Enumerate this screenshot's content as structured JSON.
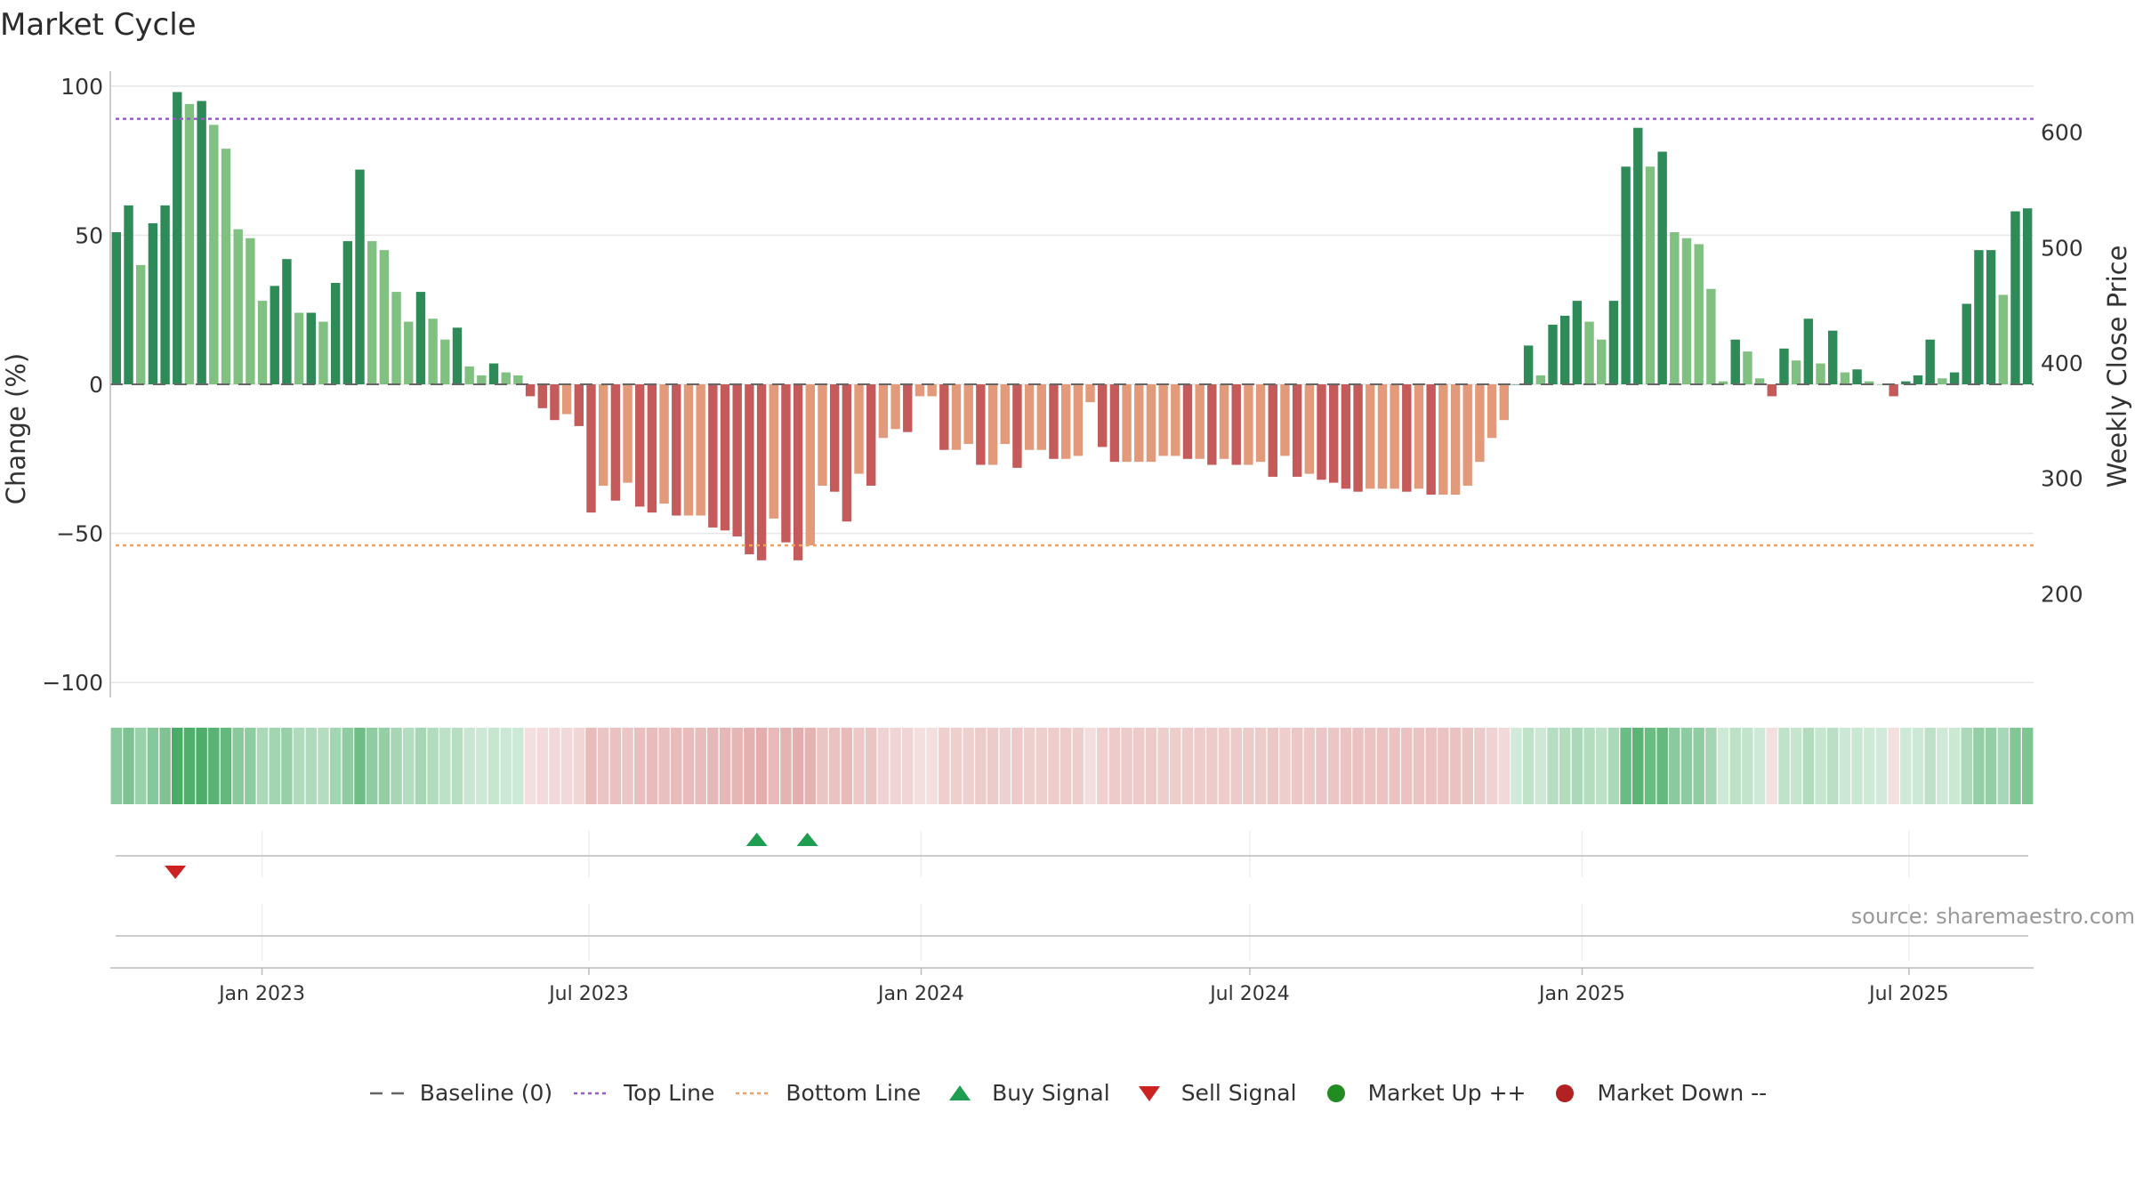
{
  "title": "Market Cycle",
  "source": "source: sharemaestro.com",
  "chart_data": {
    "type": "bar",
    "ylabel_left": "Change (%)",
    "ylabel_right": "Weekly Close Price",
    "ylim_left": [
      -105,
      105
    ],
    "yticks_left": [
      100,
      50,
      0,
      -50,
      -100
    ],
    "yticks_left_labels": [
      "100",
      "50",
      "0",
      "−50",
      "−100"
    ],
    "yticks_right": [
      600,
      500,
      400,
      300,
      200
    ],
    "right_axis_range": [
      110,
      653
    ],
    "x_start": "2022-10-09",
    "x_end": "2025-09-08",
    "xtick_dates": [
      "2023-01-01",
      "2023-07-01",
      "2024-01-01",
      "2024-07-01",
      "2025-01-01",
      "2025-07-01"
    ],
    "xtick_labels": [
      "Jan 2023",
      "Jul 2023",
      "Jan 2024",
      "Jul 2024",
      "Jan 2025",
      "Jul 2025"
    ],
    "first_bar_date": "2022-10-10",
    "bar_interval": "weekly",
    "top_line": 89,
    "bottom_line": -54,
    "values": [
      51,
      60,
      40,
      54,
      60,
      98,
      94,
      95,
      87,
      79,
      52,
      49,
      28,
      33,
      42,
      24,
      24,
      21,
      34,
      48,
      72,
      48,
      45,
      31,
      21,
      31,
      22,
      15,
      19,
      6,
      3,
      7,
      4,
      3,
      -4,
      -8,
      -12,
      -10,
      -14,
      -43,
      -34,
      -39,
      -33,
      -41,
      -43,
      -40,
      -44,
      -44,
      -44,
      -48,
      -49,
      -51,
      -57,
      -59,
      -45,
      -53,
      -59,
      -54,
      -34,
      -36,
      -46,
      -30,
      -34,
      -18,
      -15,
      -16,
      -4,
      -4,
      -22,
      -22,
      -20,
      -27,
      -27,
      -20,
      -28,
      -22,
      -22,
      -25,
      -25,
      -24,
      -6,
      -21,
      -26,
      -26,
      -26,
      -26,
      -24,
      -24,
      -25,
      -25,
      -27,
      -25,
      -27,
      -27,
      -26,
      -31,
      -24,
      -31,
      -30,
      -32,
      -33,
      -35,
      -36,
      -35,
      -35,
      -35,
      -36,
      -35,
      -37,
      -37,
      -37,
      -34,
      -26,
      -18,
      -12,
      0,
      13,
      3,
      20,
      23,
      28,
      21,
      15,
      28,
      73,
      86,
      73,
      78,
      51,
      49,
      47,
      32,
      1,
      15,
      11,
      2,
      -4,
      12,
      8,
      22,
      7,
      18,
      4,
      5,
      1,
      0,
      -4,
      1,
      3,
      15,
      2,
      4,
      27,
      45,
      45,
      30,
      58,
      59
    ],
    "buy_signals": [
      "2023-10-02",
      "2023-10-30"
    ],
    "sell_signals": [
      "2022-11-14"
    ],
    "legend": [
      "Baseline (0)",
      "Top Line",
      "Bottom Line",
      "Buy Signal",
      "Sell Signal",
      "Market Up ++",
      "Market Down --"
    ],
    "grid": true,
    "legend_position": "bottom-center"
  },
  "colors": {
    "up_dark": "#2e8b57",
    "up_light": "#80c080",
    "down_dark": "#c55a5a",
    "down_light": "#e39a7a",
    "top_line": "#9b59d0",
    "bottom_line": "#f0a060",
    "baseline": "#666666",
    "buy": "#1e9e50",
    "sell": "#cc2222",
    "market_up": "#228b22",
    "market_down": "#b22222",
    "grid": "#e6e6e6"
  }
}
